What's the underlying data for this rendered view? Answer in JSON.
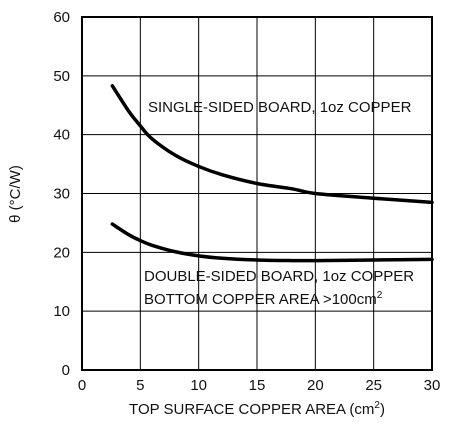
{
  "chart_data": {
    "type": "line",
    "title": "",
    "xlabel": "TOP SURFACE COPPER AREA (cm",
    "xlabel_sup": "2",
    "xlabel_tail": ")",
    "ylabel": "θ (°C/W)",
    "xlim": [
      0,
      30
    ],
    "ylim": [
      0,
      60
    ],
    "xticks": [
      0,
      5,
      10,
      15,
      20,
      25,
      30
    ],
    "yticks": [
      0,
      10,
      20,
      30,
      40,
      50,
      60
    ],
    "grid": true,
    "series": [
      {
        "name": "SINGLE-SIDED BOARD, 1oz COPPER",
        "x": [
          2.6,
          4,
          5,
          6,
          8,
          10,
          12,
          15,
          18,
          20,
          25,
          30
        ],
        "y": [
          48.3,
          44,
          41.5,
          39.3,
          36.5,
          34.6,
          33.2,
          31.7,
          30.8,
          30.0,
          29.2,
          28.5
        ]
      },
      {
        "name": "DOUBLE-SIDED BOARD, 1oz COPPER",
        "x": [
          2.6,
          4,
          5,
          6,
          8,
          10,
          12,
          15,
          18,
          20,
          25,
          30
        ],
        "y": [
          24.8,
          23.0,
          22.0,
          21.2,
          20.1,
          19.4,
          19.0,
          18.7,
          18.6,
          18.6,
          18.7,
          18.8
        ]
      }
    ],
    "annotations": {
      "single": "SINGLE-SIDED BOARD, 1oz COPPER",
      "double_line1": "DOUBLE-SIDED BOARD, 1oz COPPER",
      "double_line2": "BOTTOM COPPER AREA >100cm",
      "double_line2_sup": "2"
    }
  }
}
